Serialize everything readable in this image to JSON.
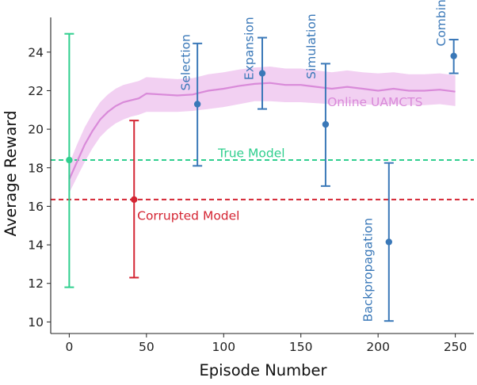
{
  "chart_data": {
    "type": "line",
    "xlabel": "Episode Number",
    "ylabel": "Average Reward",
    "xlim": [
      -12,
      262
    ],
    "ylim": [
      9.4,
      25.8
    ],
    "xticks": [
      0,
      50,
      100,
      150,
      200,
      250
    ],
    "yticks": [
      10,
      12,
      14,
      16,
      18,
      20,
      22,
      24
    ],
    "grid": false,
    "colors": {
      "uamcts": "#d98ad9",
      "uamcts_band": "#f0c8f0",
      "true_model": "#2fcf8e",
      "corrupted_model": "#d42533",
      "ablation": "#3a78b8"
    },
    "series": [
      {
        "name": "Online UAMCTS",
        "x": [
          0,
          5,
          10,
          15,
          20,
          25,
          30,
          35,
          40,
          45,
          50,
          60,
          70,
          80,
          90,
          100,
          110,
          120,
          130,
          140,
          150,
          160,
          170,
          180,
          190,
          200,
          210,
          220,
          230,
          240,
          250
        ],
        "y": [
          17.4,
          18.3,
          19.2,
          19.9,
          20.5,
          20.9,
          21.2,
          21.4,
          21.5,
          21.6,
          21.85,
          21.8,
          21.75,
          21.8,
          22.0,
          22.1,
          22.25,
          22.35,
          22.4,
          22.3,
          22.3,
          22.2,
          22.1,
          22.2,
          22.1,
          22.0,
          22.1,
          22.0,
          22.0,
          22.05,
          21.95
        ],
        "lower": [
          16.7,
          17.5,
          18.3,
          19.0,
          19.6,
          20.0,
          20.3,
          20.5,
          20.65,
          20.75,
          20.9,
          20.9,
          20.9,
          20.95,
          21.05,
          21.15,
          21.3,
          21.45,
          21.45,
          21.4,
          21.4,
          21.35,
          21.3,
          21.35,
          21.3,
          21.25,
          21.3,
          21.25,
          21.25,
          21.3,
          21.2
        ],
        "upper": [
          18.2,
          19.2,
          20.1,
          20.8,
          21.4,
          21.8,
          22.1,
          22.3,
          22.4,
          22.5,
          22.7,
          22.65,
          22.6,
          22.65,
          22.85,
          22.95,
          23.1,
          23.2,
          23.25,
          23.15,
          23.15,
          23.05,
          22.95,
          23.05,
          22.95,
          22.9,
          22.95,
          22.85,
          22.85,
          22.9,
          22.8
        ]
      }
    ],
    "hlines": [
      {
        "name": "True Model",
        "y": 18.4,
        "color": "#2fcf8e"
      },
      {
        "name": "Corrupted Model",
        "y": 16.35,
        "color": "#d42533"
      }
    ],
    "errorbars": [
      {
        "name": "True Model",
        "x": 0,
        "y": 18.4,
        "low": 11.8,
        "high": 24.95,
        "color": "#2fcf8e"
      },
      {
        "name": "Corrupted Model",
        "x": 42,
        "y": 16.35,
        "low": 12.3,
        "high": 20.45,
        "color": "#d42533"
      },
      {
        "name": "Selection",
        "x": 83,
        "y": 21.3,
        "low": 18.1,
        "high": 24.45,
        "color": "#3a78b8"
      },
      {
        "name": "Expansion",
        "x": 125,
        "y": 22.9,
        "low": 21.05,
        "high": 24.75,
        "color": "#3a78b8"
      },
      {
        "name": "Simulation",
        "x": 166,
        "y": 20.25,
        "low": 17.05,
        "high": 23.4,
        "color": "#3a78b8"
      },
      {
        "name": "Backpropagation",
        "x": 207,
        "y": 14.15,
        "low": 10.05,
        "high": 18.25,
        "color": "#3a78b8"
      },
      {
        "name": "Combined",
        "x": 249,
        "y": 23.8,
        "low": 22.9,
        "high": 24.65,
        "color": "#3a78b8"
      }
    ],
    "annotations": [
      {
        "text": "Online UAMCTS",
        "x": 198,
        "y": 21.2,
        "color": "#d98ad9",
        "rotate": 0,
        "anchor": "middle"
      },
      {
        "text": "True Model",
        "x": 118,
        "y": 18.55,
        "color": "#2fcf8e",
        "rotate": 0,
        "anchor": "middle"
      },
      {
        "text": "Corrupted Model",
        "x": 44,
        "y": 15.3,
        "color": "#d42533",
        "rotate": 0,
        "anchor": "start"
      },
      {
        "text": "Selection",
        "x": 78,
        "y": 22.0,
        "color": "#3a78b8",
        "rotate": -90,
        "anchor": "start"
      },
      {
        "text": "Expansion",
        "x": 119,
        "y": 22.55,
        "color": "#3a78b8",
        "rotate": -90,
        "anchor": "start"
      },
      {
        "text": "Simulation",
        "x": 159.5,
        "y": 22.6,
        "color": "#3a78b8",
        "rotate": -90,
        "anchor": "start"
      },
      {
        "text": "Backpropagation",
        "x": 196,
        "y": 10.0,
        "color": "#3a78b8",
        "rotate": -90,
        "anchor": "start"
      },
      {
        "text": "Combined",
        "x": 243.5,
        "y": 24.3,
        "color": "#3a78b8",
        "rotate": -90,
        "anchor": "start"
      }
    ]
  }
}
